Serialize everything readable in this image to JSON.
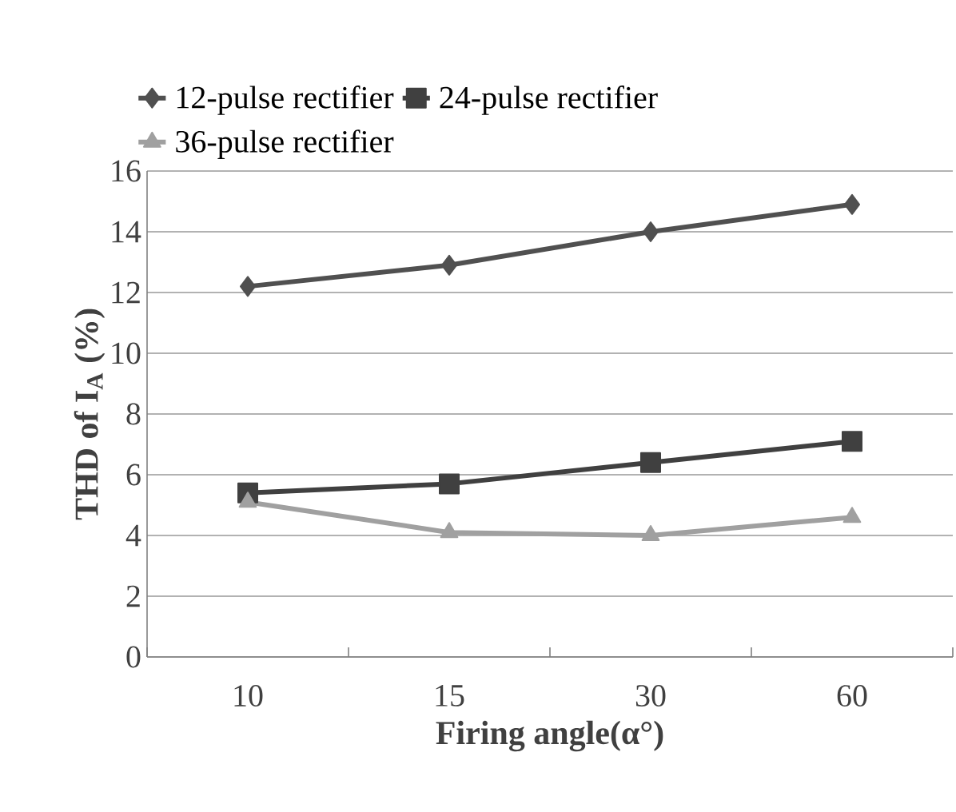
{
  "chart_data": {
    "type": "line",
    "xlabel": "Firing angle(α°)",
    "ylabel": "THD of I$_{A}$ (%)",
    "categories": [
      "10",
      "15",
      "30",
      "60"
    ],
    "series": [
      {
        "name": "12-pulse rectifier",
        "color": "#505050",
        "marker": "diamond",
        "values": [
          12.2,
          12.9,
          14.0,
          14.9
        ]
      },
      {
        "name": "24-pulse rectifier",
        "color": "#404040",
        "marker": "square",
        "values": [
          5.4,
          5.7,
          6.4,
          7.1
        ]
      },
      {
        "name": "36-pulse rectifier",
        "color": "#a0a0a0",
        "marker": "triangle",
        "values": [
          5.1,
          4.1,
          4.0,
          4.6
        ]
      }
    ],
    "ylim": [
      0,
      16
    ],
    "yticks": [
      0,
      2,
      4,
      6,
      8,
      10,
      12,
      14,
      16
    ],
    "grid": "y",
    "legend": "top"
  }
}
